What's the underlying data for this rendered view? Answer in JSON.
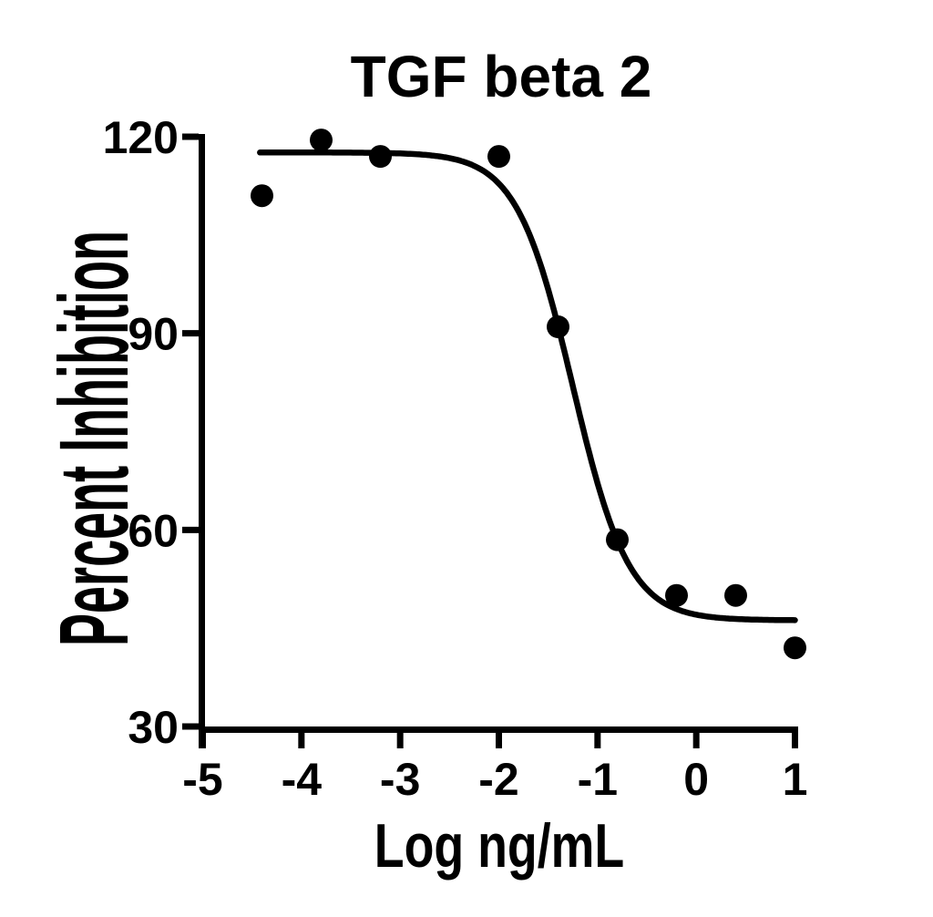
{
  "chart_data": {
    "type": "scatter",
    "title": "TGF beta 2",
    "xlabel": "Log ng/mL",
    "ylabel": "Percent Inhibition",
    "xlim": [
      -5,
      1
    ],
    "ylim": [
      30,
      120
    ],
    "x_ticks": [
      -5,
      -4,
      -3,
      -2,
      -1,
      0,
      1
    ],
    "x_tick_labels": [
      "-5",
      "-4",
      "-3",
      "-2",
      "-1",
      "0",
      "1"
    ],
    "y_ticks": [
      120,
      90,
      60,
      30
    ],
    "y_tick_labels": [
      "120",
      "90",
      "60",
      "30"
    ],
    "grid": false,
    "legend_position": "none",
    "marker_color": "#000000",
    "curve_color": "#000000",
    "axis_color": "#000000",
    "background_color": "#ffffff",
    "points": [
      {
        "x": -4.4,
        "y": 111
      },
      {
        "x": -3.8,
        "y": 119.5
      },
      {
        "x": -3.2,
        "y": 117
      },
      {
        "x": -2.0,
        "y": 117
      },
      {
        "x": -1.4,
        "y": 91
      },
      {
        "x": -0.8,
        "y": 58.5
      },
      {
        "x": -0.2,
        "y": 50
      },
      {
        "x": 0.4,
        "y": 50
      },
      {
        "x": 1.0,
        "y": 42
      }
    ],
    "fit_curve": {
      "model": "four_parameter_logistic",
      "top": 117.6,
      "bottom": 46.2,
      "logIC50": -1.25,
      "hill_slope": -1.53,
      "x_start": -4.42,
      "x_end": 1.005
    }
  }
}
